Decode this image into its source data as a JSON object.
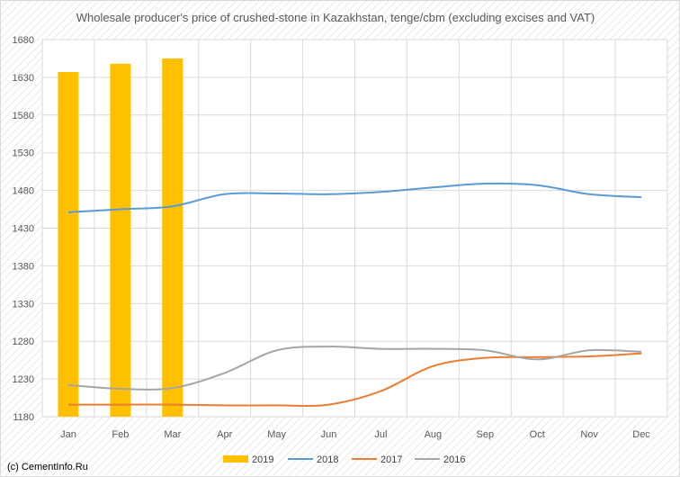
{
  "chart_data": {
    "type": "bar",
    "title": "Wholesale producer's price of crushed-stone in Kazakhstan, tenge/cbm (excluding excises and VAT)",
    "categories": [
      "Jan",
      "Feb",
      "Mar",
      "Apr",
      "May",
      "Jun",
      "Jul",
      "Aug",
      "Sep",
      "Oct",
      "Nov",
      "Dec"
    ],
    "ylim": [
      1180,
      1680
    ],
    "yticks": [
      1180,
      1230,
      1280,
      1330,
      1380,
      1430,
      1480,
      1530,
      1580,
      1630,
      1680
    ],
    "grid": true,
    "legend_position": "bottom",
    "series": [
      {
        "name": "2019",
        "kind": "bar",
        "color": "#FFC000",
        "values": [
          1637,
          1648,
          1655,
          null,
          null,
          null,
          null,
          null,
          null,
          null,
          null,
          null
        ]
      },
      {
        "name": "2018",
        "kind": "line",
        "color": "#5B9BD5",
        "values": [
          1451,
          1455,
          1459,
          1475,
          1476,
          1475,
          1478,
          1484,
          1489,
          1487,
          1475,
          1471
        ]
      },
      {
        "name": "2017",
        "kind": "line",
        "color": "#ED7D31",
        "values": [
          1196,
          1196,
          1196,
          1195,
          1195,
          1196,
          1214,
          1247,
          1258,
          1259,
          1260,
          1264
        ]
      },
      {
        "name": "2016",
        "kind": "line",
        "color": "#A5A5A5",
        "values": [
          1222,
          1217,
          1218,
          1238,
          1268,
          1273,
          1270,
          1270,
          1268,
          1256,
          1268,
          1266
        ]
      }
    ]
  },
  "footer": {
    "copyright": "(c) CementInfo.Ru"
  }
}
